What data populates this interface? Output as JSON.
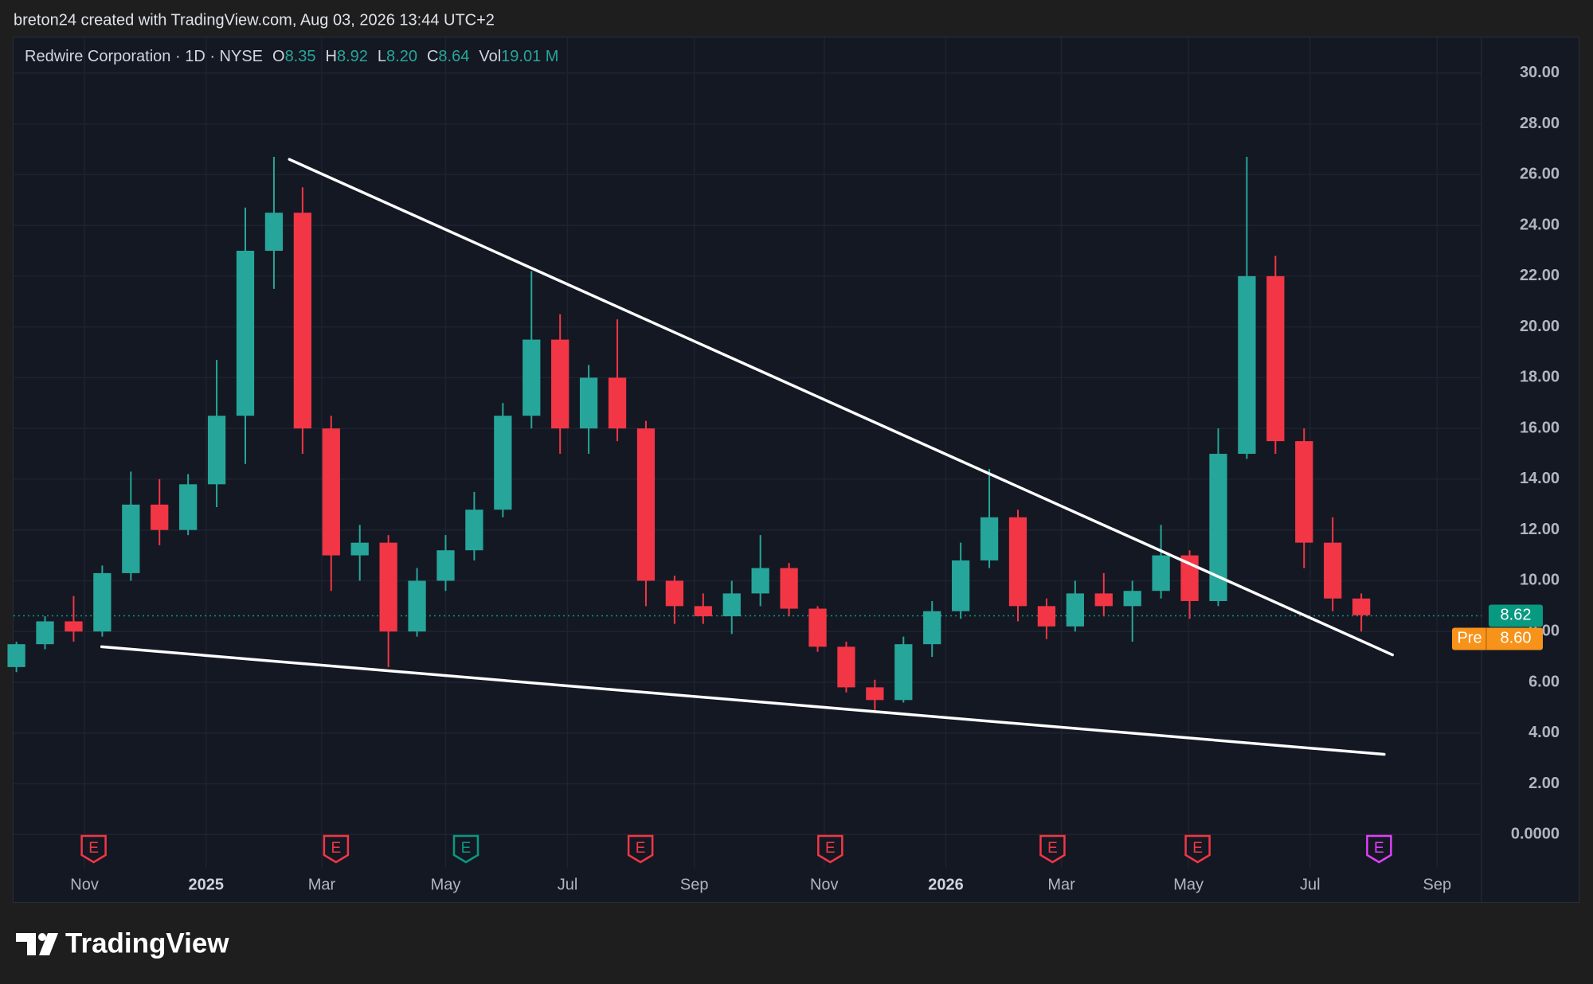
{
  "credit": "breton24 created with TradingView.com, Aug 03, 2026 13:44 UTC+2",
  "brand": "TradingView",
  "chart_data": {
    "type": "candlestick",
    "title": "Redwire Corporation · 1D · NYSE",
    "ohlc_header": [
      {
        "label": "O",
        "value": "8.35"
      },
      {
        "label": "H",
        "value": "8.92"
      },
      {
        "label": "L",
        "value": "8.20"
      },
      {
        "label": "C",
        "value": "8.64"
      },
      {
        "label": "Vol",
        "value": "19.01 M"
      }
    ],
    "up_color": "#26a69a",
    "down_color": "#f23645",
    "open": [
      6.6,
      7.5,
      8.4,
      8.0,
      10.3,
      13.0,
      12.0,
      13.8,
      16.5,
      23.0,
      24.5,
      16.0,
      11.0,
      11.5,
      8.0,
      10.0,
      11.2,
      12.8,
      16.5,
      19.5,
      16.0,
      18.0,
      16.0,
      10.0,
      9.0,
      8.6,
      9.5,
      10.5,
      8.9,
      7.4,
      5.8,
      5.3,
      7.5,
      8.8,
      10.8,
      12.5,
      9.0,
      8.2,
      9.5,
      9.0,
      9.6,
      11.0,
      9.2,
      15.0,
      22.0,
      15.5,
      11.5,
      9.3
    ],
    "high": [
      7.6,
      8.6,
      9.4,
      10.6,
      14.3,
      14.0,
      14.2,
      18.7,
      24.7,
      26.7,
      25.5,
      16.5,
      12.2,
      11.8,
      10.5,
      11.8,
      13.5,
      17.0,
      22.2,
      20.5,
      18.5,
      20.3,
      16.3,
      10.2,
      9.5,
      10.0,
      11.8,
      10.7,
      9.0,
      7.6,
      6.1,
      7.8,
      9.2,
      11.5,
      14.4,
      12.8,
      9.3,
      10.0,
      10.3,
      10.0,
      12.2,
      11.2,
      16.0,
      26.7,
      22.8,
      16.0,
      12.5,
      9.5
    ],
    "low": [
      6.4,
      7.3,
      7.6,
      7.8,
      10.0,
      11.4,
      11.8,
      12.9,
      14.6,
      21.5,
      15.0,
      9.6,
      10.0,
      6.6,
      7.8,
      9.6,
      10.8,
      12.5,
      16.0,
      15.0,
      15.0,
      15.5,
      9.0,
      8.3,
      8.3,
      7.9,
      9.0,
      8.6,
      7.2,
      5.6,
      4.9,
      5.2,
      7.0,
      8.5,
      10.5,
      8.4,
      7.7,
      8.0,
      8.6,
      7.6,
      9.3,
      8.5,
      9.0,
      14.8,
      15.0,
      10.5,
      8.8,
      8.0
    ],
    "close": [
      7.5,
      8.4,
      8.0,
      10.3,
      13.0,
      12.0,
      13.8,
      16.5,
      23.0,
      24.5,
      16.0,
      11.0,
      11.5,
      8.0,
      10.0,
      11.2,
      12.8,
      16.5,
      19.5,
      16.0,
      18.0,
      16.0,
      10.0,
      9.0,
      8.6,
      9.5,
      10.5,
      8.9,
      7.4,
      5.8,
      5.3,
      7.5,
      8.8,
      10.8,
      12.5,
      9.0,
      8.2,
      9.5,
      9.0,
      9.6,
      11.0,
      9.2,
      15.0,
      22.0,
      15.5,
      11.5,
      9.3,
      8.64
    ],
    "xlim": [
      -0.1,
      51.2
    ],
    "xticks": [
      {
        "value": 2.38,
        "label": "Nov"
      },
      {
        "value": 6.63,
        "label": "2025"
      },
      {
        "value": 10.67,
        "label": "Mar"
      },
      {
        "value": 15.0,
        "label": "May"
      },
      {
        "value": 19.26,
        "label": "Jul"
      },
      {
        "value": 23.69,
        "label": "Sep"
      },
      {
        "value": 28.23,
        "label": "Nov"
      },
      {
        "value": 32.48,
        "label": "2026"
      },
      {
        "value": 36.52,
        "label": "Mar"
      },
      {
        "value": 40.96,
        "label": "May"
      },
      {
        "value": 45.21,
        "label": "Jul"
      },
      {
        "value": 49.65,
        "label": "Sep"
      }
    ],
    "ylim": [
      -1.12,
      31.28
    ],
    "yticks": [
      {
        "value": 0,
        "label": "0.0000"
      },
      {
        "value": 2,
        "label": "2.00"
      },
      {
        "value": 4,
        "label": "4.00"
      },
      {
        "value": 6,
        "label": "6.00"
      },
      {
        "value": 8,
        "label": "8.00"
      },
      {
        "value": 10,
        "label": "10.00"
      },
      {
        "value": 12,
        "label": "12.00"
      },
      {
        "value": 14,
        "label": "14.00"
      },
      {
        "value": 16,
        "label": "16.00"
      },
      {
        "value": 18,
        "label": "18.00"
      },
      {
        "value": 20,
        "label": "20.00"
      },
      {
        "value": 22,
        "label": "22.00"
      },
      {
        "value": 24,
        "label": "24.00"
      },
      {
        "value": 26,
        "label": "26.00"
      },
      {
        "value": 28,
        "label": "28.00"
      },
      {
        "value": 30,
        "label": "30.00"
      }
    ],
    "grid": true,
    "last_price": {
      "value": 8.62,
      "label": "8.62",
      "color": "#089981"
    },
    "pre_price": {
      "tag": "Pre",
      "value": 8.6,
      "label": "8.60",
      "color": "#f7931a"
    },
    "trendlines": [
      {
        "x": [
          9.54,
          48.09
        ],
        "y": [
          26.6,
          7.08
        ],
        "color": "#ffffff"
      },
      {
        "x": [
          2.98,
          47.8
        ],
        "y": [
          7.4,
          3.16
        ],
        "color": "#ffffff"
      }
    ],
    "events": [
      {
        "x": 2.7,
        "label": "E",
        "color": "#f23645"
      },
      {
        "x": 11.17,
        "label": "E",
        "color": "#f23645"
      },
      {
        "x": 15.71,
        "label": "E",
        "color": "#089981"
      },
      {
        "x": 21.81,
        "label": "E",
        "color": "#f23645"
      },
      {
        "x": 28.44,
        "label": "E",
        "color": "#f23645"
      },
      {
        "x": 36.21,
        "label": "E",
        "color": "#f23645"
      },
      {
        "x": 41.28,
        "label": "E",
        "color": "#f23645"
      },
      {
        "x": 47.62,
        "label": "E",
        "color": "#e040fb"
      }
    ]
  }
}
